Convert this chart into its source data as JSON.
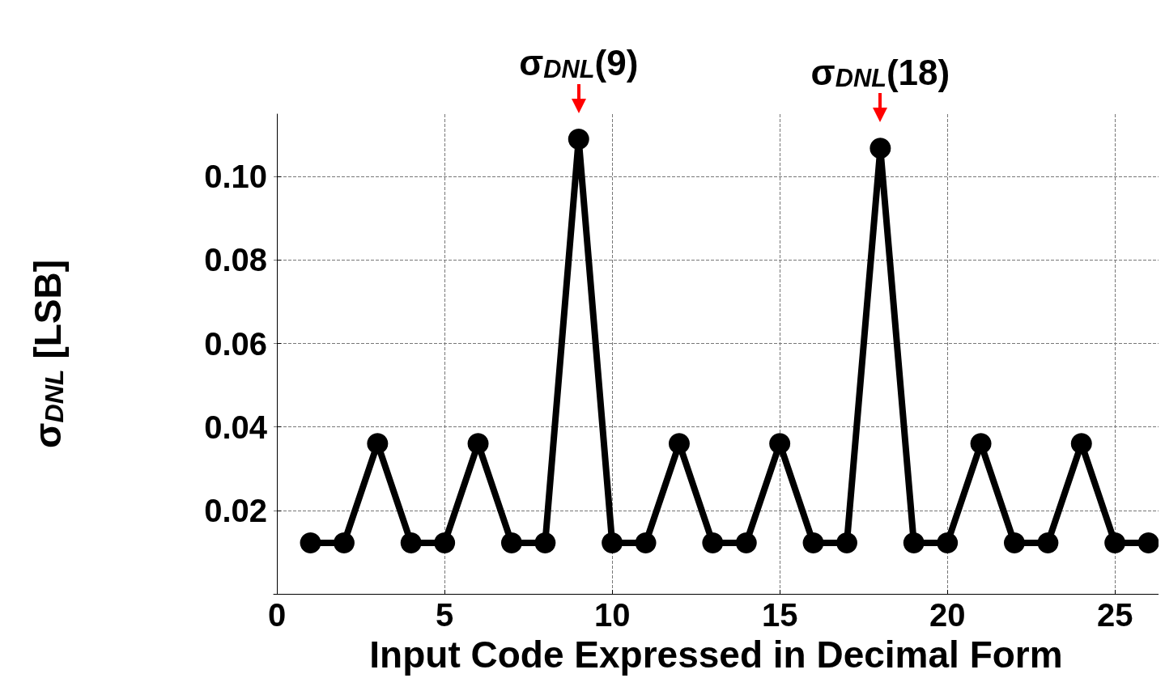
{
  "chart_data": {
    "type": "line",
    "xlabel": "Input Code Expressed in Decimal Form",
    "ylabel": "σ$_{DNL}$ [LSB]",
    "x": [
      1,
      2,
      3,
      4,
      5,
      6,
      7,
      8,
      9,
      10,
      11,
      12,
      13,
      14,
      15,
      16,
      17,
      18,
      19,
      20,
      21,
      22,
      23,
      24,
      25,
      26
    ],
    "series": [
      {
        "color": "#000000",
        "values": [
          0.0122,
          0.0122,
          0.036,
          0.0122,
          0.0122,
          0.036,
          0.0122,
          0.0122,
          0.109,
          0.0122,
          0.0122,
          0.036,
          0.0122,
          0.0122,
          0.036,
          0.0122,
          0.0122,
          0.1068,
          0.0122,
          0.0122,
          0.036,
          0.0122,
          0.0122,
          0.036,
          0.0122,
          0.0122
        ]
      }
    ],
    "xlim": [
      -0.1,
      26.3
    ],
    "xticks": [
      0,
      5,
      10,
      15,
      20,
      25
    ],
    "ylim": [
      0,
      0.115
    ],
    "yticks": [
      {
        "value": 0,
        "label": null
      },
      {
        "value": 0.02,
        "label": "0.02"
      },
      {
        "value": 0.04,
        "label": "0.04"
      },
      {
        "value": 0.06,
        "label": "0.06"
      },
      {
        "value": 0.08,
        "label": "0.08"
      },
      {
        "value": 0.1,
        "label": "0.10"
      }
    ],
    "annotations": [
      {
        "text": "σ$_{DNL}$(9)",
        "x": 9,
        "y": 0.109
      },
      {
        "text": "σ$_{DNL}$(18)",
        "x": 18,
        "y": 0.1068
      }
    ],
    "grid": true,
    "marker": "circle",
    "line_style": "solid"
  }
}
